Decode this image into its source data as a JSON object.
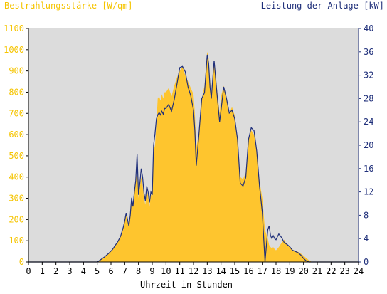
{
  "colors": {
    "irradiance": "#fec52e",
    "irradiance_text": "#f5c400",
    "power": "#1f2f7a",
    "plot_background": "#dcdcdc",
    "axis": "#000000"
  },
  "chart_data": {
    "type": "area",
    "title": "",
    "left_axis_label": "Bestrahlungsstärke [W/qm]",
    "right_axis_label": "Leistung der Anlage [kW]",
    "xlabel": "Uhrzeit in Stunden",
    "xlim": [
      0,
      24
    ],
    "ylim_left": [
      0,
      1100
    ],
    "ylim_right": [
      0,
      40
    ],
    "grid": false,
    "x_ticks": [
      "0",
      "1",
      "2",
      "3",
      "4",
      "5",
      "6",
      "7",
      "8",
      "9",
      "10",
      "11",
      "12",
      "13",
      "14",
      "15",
      "16",
      "17",
      "18",
      "19",
      "20",
      "21",
      "22",
      "23",
      "24"
    ],
    "y_ticks_left": [
      "0",
      "100",
      "200",
      "300",
      "400",
      "500",
      "600",
      "700",
      "800",
      "900",
      "1000",
      "1100"
    ],
    "y_ticks_right": [
      "0",
      "4",
      "8",
      "12",
      "16",
      "20",
      "24",
      "28",
      "32",
      "36",
      "40"
    ],
    "series": [
      {
        "name": "Bestrahlungsstärke",
        "unit": "W/qm",
        "axis": "left",
        "style": "filled-area",
        "x": [
          0,
          5.0,
          5.2,
          5.5,
          5.8,
          6.1,
          6.3,
          6.5,
          6.7,
          6.9,
          7.0,
          7.1,
          7.2,
          7.3,
          7.4,
          7.5,
          7.6,
          7.7,
          7.8,
          7.9,
          8.0,
          8.1,
          8.2,
          8.3,
          8.4,
          8.5,
          8.6,
          8.7,
          8.8,
          8.9,
          9.0,
          9.1,
          9.2,
          9.3,
          9.4,
          9.5,
          9.6,
          9.7,
          9.8,
          9.9,
          10.0,
          10.2,
          10.4,
          10.6,
          10.8,
          11.0,
          11.2,
          11.4,
          11.6,
          11.8,
          12.0,
          12.1,
          12.2,
          12.4,
          12.6,
          12.8,
          13.0,
          13.1,
          13.2,
          13.3,
          13.4,
          13.5,
          13.7,
          13.9,
          14.0,
          14.2,
          14.4,
          14.6,
          14.8,
          15.0,
          15.2,
          15.4,
          15.6,
          15.8,
          16.0,
          16.2,
          16.4,
          16.6,
          16.8,
          17.0,
          17.2,
          17.4,
          17.5,
          17.6,
          17.7,
          17.8,
          17.9,
          18.0,
          18.2,
          18.4,
          18.6,
          18.8,
          19.0,
          19.2,
          19.4,
          19.6,
          19.8,
          20.0,
          20.2,
          20.4,
          20.6,
          21.0,
          24.0
        ],
        "values": [
          0,
          0,
          8,
          22,
          38,
          58,
          75,
          95,
          120,
          165,
          190,
          230,
          200,
          170,
          220,
          300,
          260,
          330,
          380,
          430,
          300,
          350,
          400,
          360,
          300,
          270,
          340,
          310,
          260,
          320,
          300,
          520,
          550,
          650,
          770,
          780,
          760,
          790,
          770,
          800,
          800,
          820,
          780,
          830,
          870,
          900,
          920,
          880,
          850,
          820,
          790,
          700,
          540,
          610,
          770,
          830,
          990,
          960,
          860,
          800,
          880,
          950,
          820,
          700,
          780,
          830,
          770,
          700,
          730,
          690,
          560,
          400,
          390,
          420,
          580,
          620,
          600,
          520,
          380,
          300,
          150,
          110,
          80,
          70,
          65,
          70,
          60,
          55,
          70,
          90,
          105,
          80,
          70,
          58,
          52,
          48,
          40,
          30,
          18,
          8,
          0,
          0,
          0
        ]
      },
      {
        "name": "Leistung der Anlage",
        "unit": "kW",
        "axis": "right",
        "style": "line",
        "x": [
          0,
          5.0,
          5.2,
          5.5,
          5.8,
          6.1,
          6.3,
          6.5,
          6.7,
          6.9,
          7.0,
          7.1,
          7.2,
          7.3,
          7.4,
          7.5,
          7.6,
          7.7,
          7.8,
          7.9,
          8.0,
          8.1,
          8.2,
          8.3,
          8.4,
          8.5,
          8.6,
          8.7,
          8.8,
          8.9,
          9.0,
          9.1,
          9.2,
          9.3,
          9.4,
          9.5,
          9.6,
          9.7,
          9.8,
          9.9,
          10.0,
          10.2,
          10.4,
          10.6,
          10.8,
          11.0,
          11.2,
          11.4,
          11.6,
          11.8,
          12.0,
          12.1,
          12.2,
          12.4,
          12.6,
          12.8,
          13.0,
          13.1,
          13.2,
          13.3,
          13.4,
          13.5,
          13.7,
          13.9,
          14.0,
          14.2,
          14.4,
          14.6,
          14.8,
          15.0,
          15.2,
          15.4,
          15.6,
          15.8,
          16.0,
          16.2,
          16.4,
          16.6,
          16.8,
          17.0,
          17.2,
          17.4,
          17.5,
          17.6,
          17.7,
          17.8,
          17.9,
          18.0,
          18.2,
          18.4,
          18.6,
          18.8,
          19.0,
          19.2,
          19.4,
          19.6,
          19.8,
          20.0,
          20.2,
          20.4,
          20.6,
          21.0,
          24.0
        ],
        "values": [
          0,
          0,
          0.3,
          0.8,
          1.4,
          2.1,
          2.8,
          3.5,
          4.4,
          6.0,
          7.0,
          8.4,
          7.3,
          6.2,
          8.0,
          11.0,
          9.5,
          12.0,
          14.0,
          18.5,
          11.5,
          13.5,
          16.0,
          14.5,
          11.8,
          10.5,
          13.0,
          12.0,
          10.2,
          12.0,
          11.5,
          20.0,
          22.0,
          24.5,
          25.2,
          25.6,
          25.2,
          25.8,
          25.3,
          26.3,
          26.3,
          27.0,
          25.8,
          27.8,
          30.5,
          33.3,
          33.5,
          32.6,
          30.0,
          28.5,
          26.0,
          22.5,
          16.5,
          22.0,
          28.0,
          29.0,
          35.5,
          34.0,
          30.0,
          28.0,
          31.5,
          34.5,
          29.0,
          24.0,
          26.0,
          30.0,
          28.0,
          25.5,
          26.0,
          24.5,
          21.0,
          13.5,
          13.0,
          14.5,
          21.0,
          23.0,
          22.5,
          19.0,
          13.0,
          8.5,
          0.0,
          5.5,
          6.2,
          4.5,
          4.0,
          4.5,
          4.0,
          3.8,
          4.8,
          4.2,
          3.3,
          3.0,
          2.6,
          2.0,
          1.8,
          1.6,
          1.2,
          0.6,
          0.2,
          0,
          0,
          0,
          0
        ]
      }
    ]
  }
}
